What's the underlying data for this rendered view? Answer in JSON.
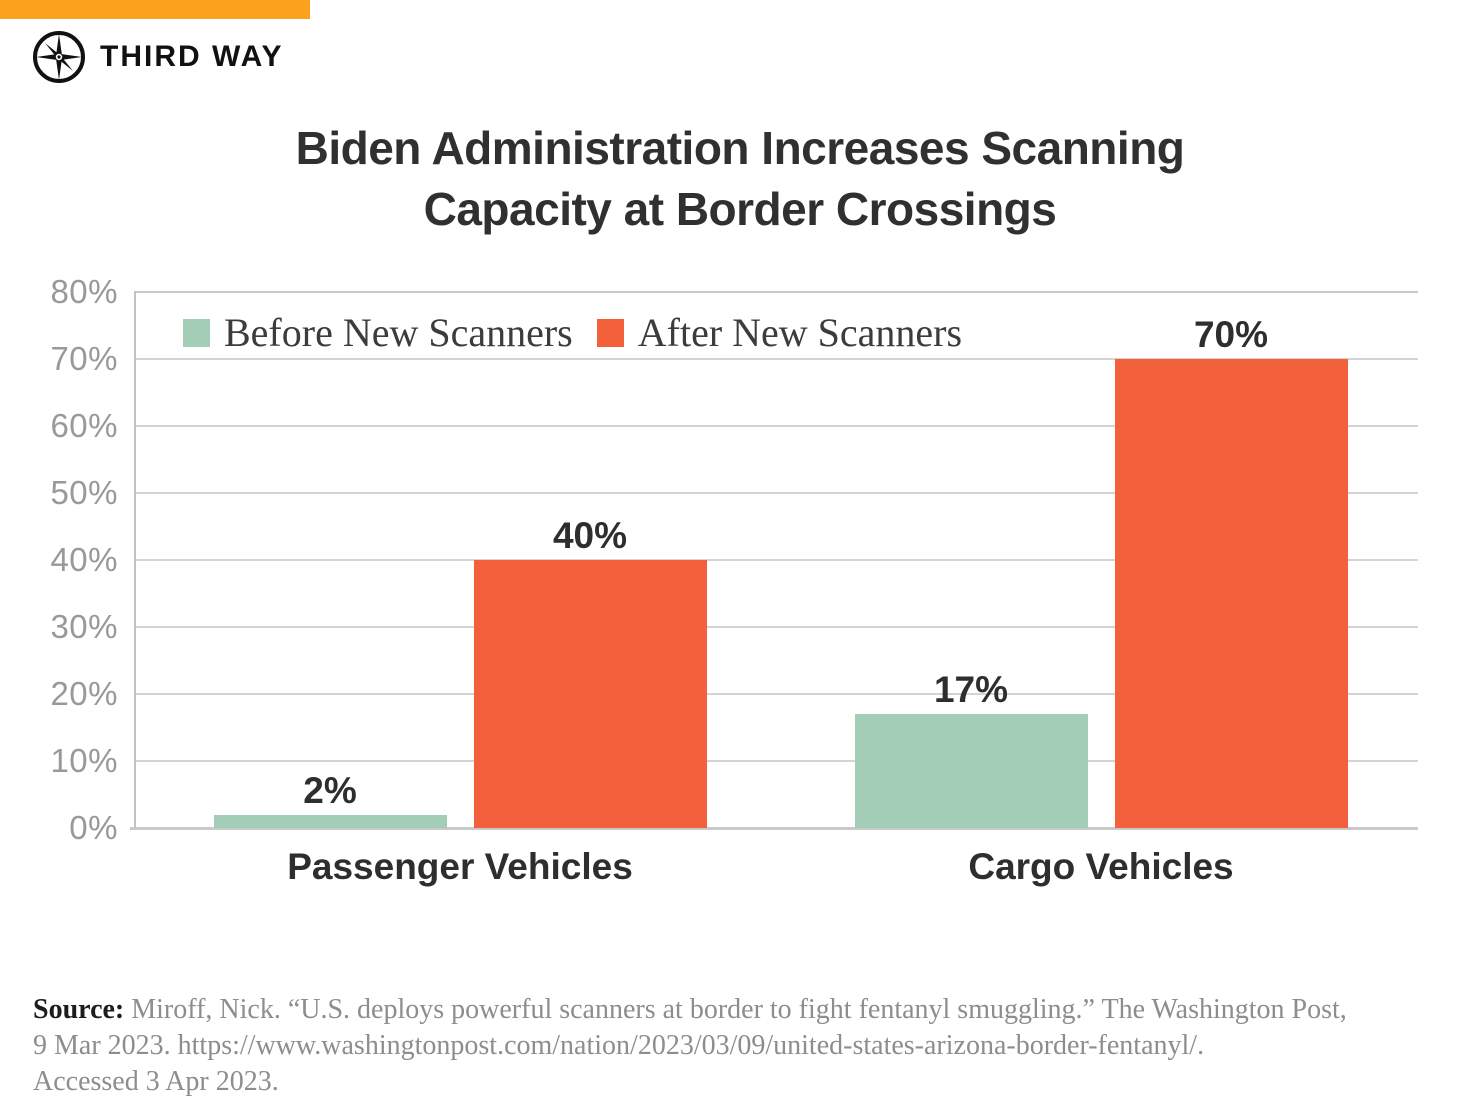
{
  "brand": {
    "name": "THIRD WAY",
    "banner_color": "#FAA21E",
    "logo_icon": "compass-icon"
  },
  "title": {
    "line1": "Biden Administration Increases Scanning",
    "line2": "Capacity at Border Crossings"
  },
  "chart_data": {
    "type": "bar",
    "title": "Biden Administration Increases Scanning Capacity at Border Crossings",
    "categories": [
      "Passenger Vehicles",
      "Cargo Vehicles"
    ],
    "series": [
      {
        "name": "Before New Scanners",
        "color": "#A4CDB7",
        "values": [
          2,
          17
        ]
      },
      {
        "name": "After New Scanners",
        "color": "#F2613B",
        "values": [
          40,
          70
        ]
      }
    ],
    "value_label_format": "percent",
    "xlabel": "",
    "ylabel": "",
    "ylim": [
      0,
      80
    ],
    "y_ticks": [
      "80%",
      "70%",
      "60%",
      "50%",
      "40%",
      "30%",
      "20%",
      "10%",
      "0%"
    ],
    "grid": "horizontal",
    "legend_position": "top-left-inside"
  },
  "source": {
    "label": "Source:",
    "lines": [
      "Miroff, Nick. “U.S. deploys powerful scanners at border to fight fentanyl smuggling.” The Washington Post,",
      "9 Mar 2023. https://www.washingtonpost.com/nation/2023/03/09/united-states-arizona-border-fentanyl/.",
      "Accessed 3 Apr 2023."
    ]
  }
}
